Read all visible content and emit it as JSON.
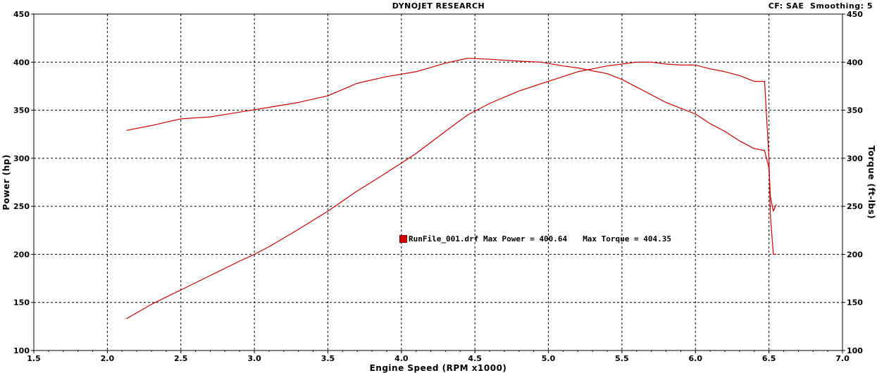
{
  "header": {
    "title": "DYNOJET RESEARCH",
    "cf_label": "CF: SAE",
    "smoothing_label": "Smoothing: 5"
  },
  "legend": {
    "run_file": "RunFile_001.drf",
    "max_power_label": "Max Power = 400.64",
    "max_torque_label": "Max Torque = 404.35"
  },
  "chart_data": {
    "type": "line",
    "title": "DYNOJET RESEARCH",
    "xlabel": "Engine Speed (RPM x1000)",
    "ylabel": "Power (hp)",
    "y2label": "Torque (ft-lbs)",
    "xlim": [
      1.5,
      7.0
    ],
    "ylim": [
      100,
      450
    ],
    "y2lim": [
      100,
      450
    ],
    "xticks": [
      1.5,
      2.0,
      2.5,
      3.0,
      3.5,
      4.0,
      4.5,
      5.0,
      5.5,
      6.0,
      6.5,
      7.0
    ],
    "yticks": [
      100,
      150,
      200,
      250,
      300,
      350,
      400,
      450
    ],
    "grid": true,
    "line_color": "#cc0000",
    "series": [
      {
        "axis": "left",
        "x": [
          2.13,
          2.3,
          2.5,
          2.7,
          2.9,
          3.0,
          3.1,
          3.3,
          3.5,
          3.7,
          3.9,
          4.0,
          4.1,
          4.3,
          4.45,
          4.6,
          4.8,
          5.0,
          5.1,
          5.2,
          5.3,
          5.4,
          5.5,
          5.6,
          5.7,
          5.8,
          5.9,
          6.0,
          6.1,
          6.2,
          6.3,
          6.4,
          6.47,
          6.5,
          6.51,
          6.53,
          6.55
        ],
        "values": [
          133,
          148,
          163,
          178,
          193,
          200,
          208,
          226,
          245,
          266,
          285,
          295,
          305,
          328,
          345,
          357,
          370,
          380,
          385,
          390,
          393,
          396,
          398,
          400,
          400,
          398,
          397,
          397,
          393,
          390,
          386,
          380,
          380,
          300,
          240,
          200,
          200
        ]
      },
      {
        "axis": "right",
        "x": [
          2.13,
          2.3,
          2.5,
          2.7,
          2.9,
          3.1,
          3.3,
          3.5,
          3.7,
          3.9,
          4.1,
          4.3,
          4.45,
          4.6,
          4.8,
          4.95,
          5.1,
          5.2,
          5.3,
          5.4,
          5.5,
          5.6,
          5.7,
          5.8,
          5.9,
          6.0,
          6.1,
          6.2,
          6.3,
          6.4,
          6.47,
          6.5,
          6.51,
          6.53,
          6.55
        ],
        "values": [
          329,
          334,
          341,
          343,
          348,
          353,
          358,
          365,
          378,
          385,
          390,
          399,
          404,
          403,
          401,
          400,
          396,
          394,
          391,
          388,
          382,
          374,
          366,
          358,
          352,
          346,
          336,
          328,
          318,
          310,
          308,
          290,
          260,
          245,
          252
        ]
      }
    ]
  }
}
